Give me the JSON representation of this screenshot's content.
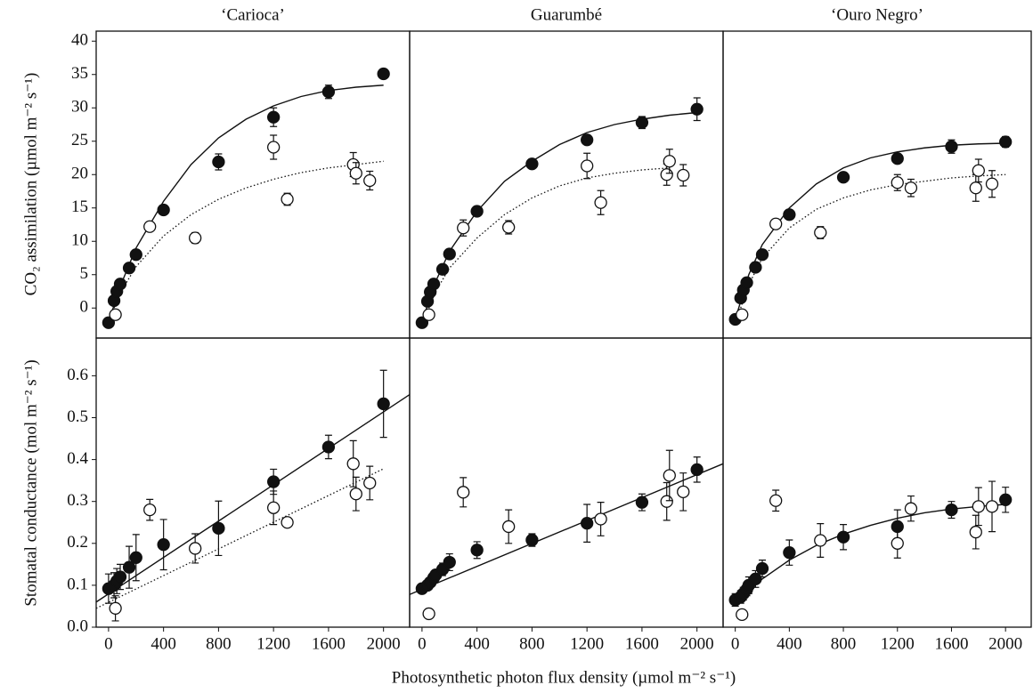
{
  "figure": {
    "xlabel": "Photosynthetic photon flux density (µmol m⁻² s⁻¹)",
    "ylabel_top": "CO₂ assimilation (µmol m⁻² s⁻¹)",
    "ylabel_bottom": "Stomatal conductance (mol m⁻² s⁻¹)"
  },
  "chart_data": [
    {
      "type": "scatter",
      "title": "‘Carioca’",
      "xlim": [
        -90,
        2190
      ],
      "ylim": [
        -4.5,
        41.5
      ],
      "yticks": [
        0,
        5,
        10,
        15,
        20,
        25,
        30,
        35,
        40
      ],
      "series": [
        {
          "color": "#111111",
          "fill": "#111111",
          "x": [
            0,
            40,
            60,
            85,
            150,
            200,
            400,
            800,
            1200,
            1600,
            2000
          ],
          "values": [
            -2.2,
            1.1,
            2.5,
            3.6,
            6,
            8,
            14.7,
            21.9,
            28.6,
            32.4,
            35.1
          ],
          "errors": [
            0.3,
            0.3,
            0.3,
            0.3,
            0.4,
            0.4,
            0.5,
            1.2,
            1.4,
            1.0,
            0.5
          ],
          "fit": {
            "style": "solid",
            "x": [
              0,
              100,
              200,
              400,
              600,
              800,
              1000,
              1200,
              1400,
              1600,
              1800,
              2000
            ],
            "values": [
              -2,
              4,
              9,
              16,
              21.5,
              25.5,
              28.3,
              30.3,
              31.7,
              32.6,
              33.1,
              33.4
            ]
          }
        },
        {
          "color": "#111111",
          "fill": "#ffffff",
          "x": [
            50,
            300,
            630,
            1200,
            1300,
            1780,
            1800,
            1900
          ],
          "values": [
            -1,
            12.2,
            10.5,
            24.1,
            16.3,
            21.5,
            20.2,
            19.1
          ],
          "errors": [
            0.7,
            0.6,
            0.8,
            1.8,
            0.9,
            1.8,
            1.6,
            1.4
          ],
          "fit": {
            "style": "dotted",
            "x": [
              40,
              100,
              200,
              400,
              600,
              800,
              1000,
              1200,
              1400,
              1600,
              1800,
              2000
            ],
            "values": [
              0,
              2.8,
              6.2,
              10.8,
              14,
              16.3,
              18,
              19.3,
              20.3,
              21,
              21.5,
              22
            ]
          }
        }
      ]
    },
    {
      "type": "scatter",
      "title": "Guarumbé",
      "xlim": [
        -90,
        2190
      ],
      "ylim": [
        -4.5,
        41.5
      ],
      "series": [
        {
          "color": "#111111",
          "fill": "#111111",
          "x": [
            0,
            40,
            60,
            85,
            150,
            200,
            400,
            800,
            1200,
            1600,
            2000
          ],
          "values": [
            -2.2,
            1,
            2.4,
            3.6,
            5.8,
            8.1,
            14.5,
            21.6,
            25.2,
            27.8,
            29.8
          ],
          "errors": [
            0.3,
            0.3,
            0.3,
            0.3,
            0.4,
            0.4,
            0.5,
            0.5,
            0.6,
            0.9,
            1.7
          ],
          "fit": {
            "style": "solid",
            "x": [
              0,
              100,
              200,
              400,
              600,
              800,
              1000,
              1200,
              1400,
              1600,
              1800,
              2000
            ],
            "values": [
              -2,
              4,
              8.5,
              14.5,
              19,
              22,
              24.5,
              26.3,
              27.5,
              28.3,
              28.9,
              29.3
            ]
          }
        },
        {
          "color": "#111111",
          "fill": "#ffffff",
          "x": [
            50,
            300,
            630,
            1200,
            1300,
            1780,
            1800,
            1900
          ],
          "values": [
            -1,
            12,
            12.1,
            21.3,
            15.8,
            20,
            22,
            19.9
          ],
          "errors": [
            0.7,
            1.2,
            1,
            1.9,
            1.8,
            1.6,
            1.8,
            1.6
          ],
          "fit": {
            "style": "dotted",
            "x": [
              40,
              100,
              200,
              400,
              600,
              800,
              1000,
              1200,
              1400,
              1600,
              1800
            ],
            "values": [
              -0.5,
              2.5,
              6,
              10.5,
              14,
              16.5,
              18.3,
              19.5,
              20.2,
              20.7,
              21
            ]
          }
        }
      ]
    },
    {
      "type": "scatter",
      "title": "‘Ouro Negro’",
      "xlim": [
        -90,
        2190
      ],
      "ylim": [
        -4.5,
        41.5
      ],
      "series": [
        {
          "color": "#111111",
          "fill": "#111111",
          "x": [
            0,
            40,
            60,
            85,
            150,
            200,
            400,
            800,
            1200,
            1600,
            2000
          ],
          "values": [
            -1.7,
            1.5,
            2.7,
            3.8,
            6.1,
            8,
            14,
            19.6,
            22.4,
            24.2,
            24.9
          ],
          "errors": [
            0.3,
            0.3,
            0.3,
            0.3,
            0.4,
            0.4,
            0.5,
            0.5,
            0.6,
            1,
            0.8
          ],
          "fit": {
            "style": "solid",
            "x": [
              0,
              100,
              200,
              400,
              600,
              800,
              1000,
              1200,
              1400,
              1600,
              1800,
              2000
            ],
            "values": [
              -1.7,
              5,
              9.5,
              15,
              18.6,
              21,
              22.5,
              23.4,
              24,
              24.4,
              24.6,
              24.7
            ]
          }
        },
        {
          "color": "#111111",
          "fill": "#ffffff",
          "x": [
            50,
            300,
            630,
            1200,
            1300,
            1780,
            1800,
            1900
          ],
          "values": [
            -1,
            12.6,
            11.3,
            18.8,
            18,
            18,
            20.6,
            18.6
          ],
          "errors": [
            0.7,
            0.5,
            0.9,
            1.2,
            1.3,
            2,
            1.7,
            2
          ],
          "fit": {
            "style": "dotted",
            "x": [
              40,
              100,
              200,
              400,
              600,
              800,
              1000,
              1200,
              1400,
              1600,
              1800,
              2000
            ],
            "values": [
              0,
              3.5,
              7.5,
              12,
              14.8,
              16.5,
              17.7,
              18.5,
              19,
              19.5,
              19.8,
              20
            ]
          }
        }
      ]
    },
    {
      "type": "scatter",
      "xlim": [
        -90,
        2190
      ],
      "ylim": [
        0,
        0.69
      ],
      "xticks": [
        0,
        400,
        800,
        1200,
        1600,
        2000
      ],
      "yticks": [
        {
          "value": 0,
          "label": "0.0"
        },
        0.1,
        0.2,
        0.3,
        0.4,
        0.5,
        0.6
      ],
      "series": [
        {
          "color": "#111111",
          "fill": "#111111",
          "x": [
            0,
            40,
            60,
            85,
            150,
            200,
            400,
            800,
            1200,
            1600,
            2000
          ],
          "values": [
            0.092,
            0.1,
            0.11,
            0.12,
            0.143,
            0.166,
            0.197,
            0.236,
            0.347,
            0.43,
            0.533
          ],
          "errors": [
            0.035,
            0.03,
            0.03,
            0.03,
            0.05,
            0.055,
            0.06,
            0.065,
            0.03,
            0.028,
            0.08
          ],
          "fit": {
            "style": "solid",
            "x": [
              -90,
              2190
            ],
            "values": [
              0.06,
              0.555
            ]
          }
        },
        {
          "color": "#111111",
          "fill": "#ffffff",
          "x": [
            50,
            300,
            630,
            1200,
            1300,
            1780,
            1800,
            1900
          ],
          "values": [
            0.045,
            0.28,
            0.188,
            0.285,
            0.25,
            0.39,
            0.318,
            0.344
          ],
          "errors": [
            0.03,
            0.025,
            0.035,
            0.04,
            0.01,
            0.055,
            0.04,
            0.04
          ],
          "fit": {
            "style": "dotted",
            "x": [
              -90,
              2000
            ],
            "values": [
              0.045,
              0.378
            ]
          }
        }
      ]
    },
    {
      "type": "scatter",
      "xlim": [
        -90,
        2190
      ],
      "ylim": [
        0,
        0.69
      ],
      "xticks": [
        0,
        400,
        800,
        1200,
        1600,
        2000
      ],
      "series": [
        {
          "color": "#111111",
          "fill": "#111111",
          "x": [
            0,
            40,
            60,
            85,
            100,
            150,
            200,
            400,
            800,
            1200,
            1600,
            2000
          ],
          "values": [
            0.092,
            0.1,
            0.107,
            0.118,
            0.125,
            0.138,
            0.155,
            0.184,
            0.208,
            0.248,
            0.298,
            0.376
          ],
          "errors": [
            0.01,
            0.01,
            0.01,
            0.01,
            0.01,
            0.015,
            0.02,
            0.02,
            0.015,
            0.045,
            0.02,
            0.03
          ],
          "fit": {
            "style": "solid",
            "x": [
              -90,
              2190
            ],
            "values": [
              0.078,
              0.39
            ]
          }
        },
        {
          "color": "#111111",
          "fill": "#ffffff",
          "x": [
            50,
            300,
            630,
            1300,
            1780,
            1800,
            1900
          ],
          "values": [
            0.032,
            0.322,
            0.24,
            0.258,
            0.3,
            0.362,
            0.323
          ],
          "errors": [
            0.01,
            0.035,
            0.04,
            0.04,
            0.045,
            0.06,
            0.045
          ]
        }
      ]
    },
    {
      "type": "scatter",
      "xlim": [
        -90,
        2190
      ],
      "ylim": [
        0,
        0.69
      ],
      "xticks": [
        0,
        400,
        800,
        1200,
        1600,
        2000
      ],
      "series": [
        {
          "color": "#111111",
          "fill": "#111111",
          "x": [
            0,
            40,
            60,
            85,
            100,
            150,
            200,
            400,
            800,
            1200,
            1600,
            2000
          ],
          "values": [
            0.065,
            0.072,
            0.08,
            0.09,
            0.1,
            0.115,
            0.14,
            0.178,
            0.215,
            0.24,
            0.28,
            0.304
          ],
          "errors": [
            0.015,
            0.015,
            0.015,
            0.015,
            0.02,
            0.02,
            0.02,
            0.03,
            0.03,
            0.04,
            0.02,
            0.03
          ],
          "fit": {
            "style": "solid",
            "x": [
              0,
              200,
              400,
              600,
              800,
              1000,
              1200,
              1400,
              1600,
              1800,
              2000
            ],
            "values": [
              0.06,
              0.115,
              0.16,
              0.195,
              0.222,
              0.243,
              0.26,
              0.273,
              0.282,
              0.288,
              0.293
            ]
          }
        },
        {
          "color": "#111111",
          "fill": "#ffffff",
          "x": [
            50,
            300,
            630,
            1200,
            1300,
            1780,
            1800,
            1900
          ],
          "values": [
            0.03,
            0.302,
            0.207,
            0.2,
            0.283,
            0.227,
            0.288,
            0.288
          ],
          "errors": [
            0.01,
            0.025,
            0.04,
            0.035,
            0.03,
            0.04,
            0.045,
            0.06
          ]
        }
      ]
    }
  ]
}
